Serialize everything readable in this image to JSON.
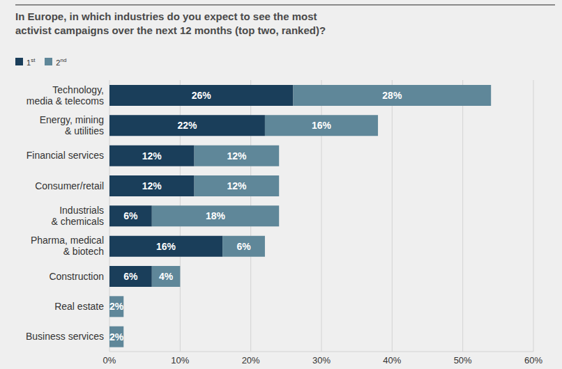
{
  "chart_data": {
    "type": "bar",
    "orientation": "horizontal",
    "stacked": true,
    "title": "In Europe, in which industries do you expect to see the most\nactivist campaigns over the next 12 months (top two, ranked)?",
    "categories": [
      "Technology,\nmedia & telecoms",
      "Energy, mining\n& utilities",
      "Financial services",
      "Consumer/retail",
      "Industrials\n& chemicals",
      "Pharma, medical\n& biotech",
      "Construction",
      "Real estate",
      "Business services"
    ],
    "series": [
      {
        "name": "1st",
        "color": "#1a3e5a",
        "values": [
          26,
          22,
          12,
          12,
          6,
          16,
          6,
          null,
          null
        ],
        "value_labels": [
          "26%",
          "22%",
          "12%",
          "12%",
          "6%",
          "16%",
          "6%",
          null,
          null
        ]
      },
      {
        "name": "2nd",
        "color": "#5f8799",
        "values": [
          28,
          16,
          12,
          12,
          18,
          6,
          4,
          2,
          2
        ],
        "value_labels": [
          "28%",
          "16%",
          "12%",
          "12%",
          "18%",
          "6%",
          "4%",
          "2%",
          "2%"
        ]
      }
    ],
    "xlim": [
      0,
      60
    ],
    "xticks": [
      {
        "value": 0,
        "label": "0%"
      },
      {
        "value": 10,
        "label": "10%"
      },
      {
        "value": 20,
        "label": "20%"
      },
      {
        "value": 30,
        "label": "30%"
      },
      {
        "value": 40,
        "label": "40%"
      },
      {
        "value": 50,
        "label": "50%"
      },
      {
        "value": 60,
        "label": "60%"
      }
    ],
    "grid": true,
    "data_labels": true,
    "legend": "top left"
  }
}
